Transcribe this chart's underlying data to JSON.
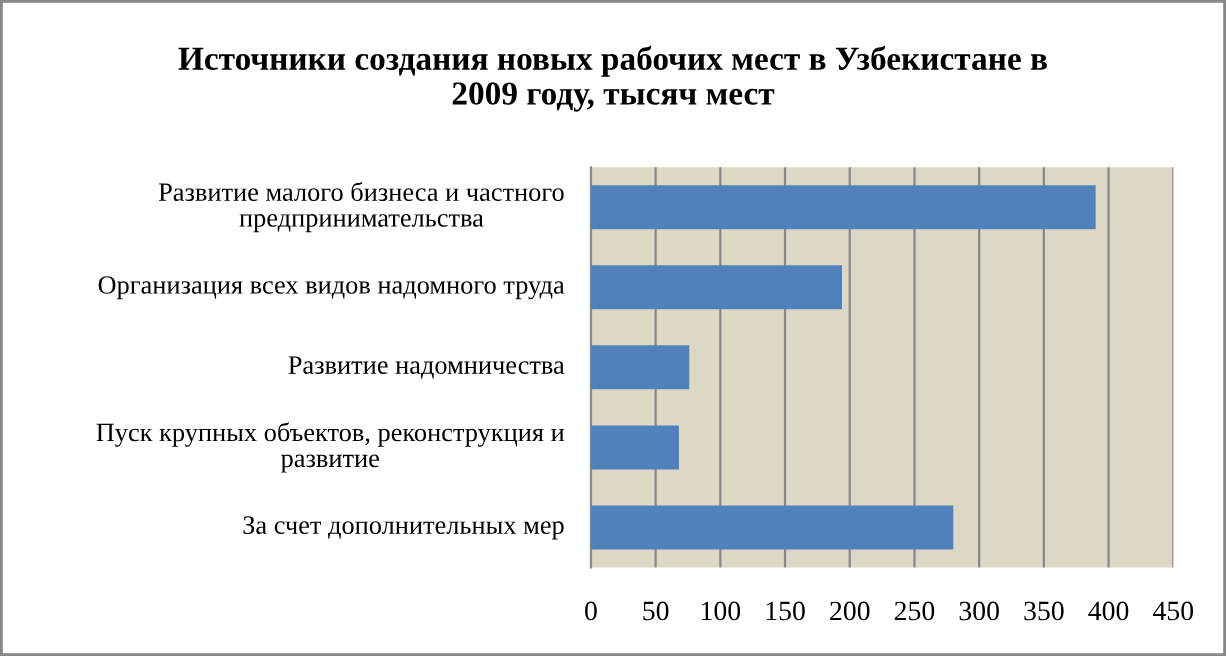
{
  "chart_data": {
    "type": "bar",
    "orientation": "horizontal",
    "title": "Источники создания новых рабочих мест в Узбекистане в\n2009 году, тысяч мест",
    "categories": [
      "Развитие малого бизнеса и частного предпринимательства",
      "Организация всех видов надомного труда",
      "Развитие надомничества",
      "Пуск крупных объектов, реконструкция и развитие",
      "За счет дополнительных мер"
    ],
    "values": [
      390,
      194,
      76,
      68,
      280
    ],
    "color": "#4f81bd",
    "xlim": [
      0,
      450
    ],
    "xticks": [
      0,
      50,
      100,
      150,
      200,
      250,
      300,
      350,
      400,
      450
    ],
    "grid": "x",
    "legend": false
  }
}
